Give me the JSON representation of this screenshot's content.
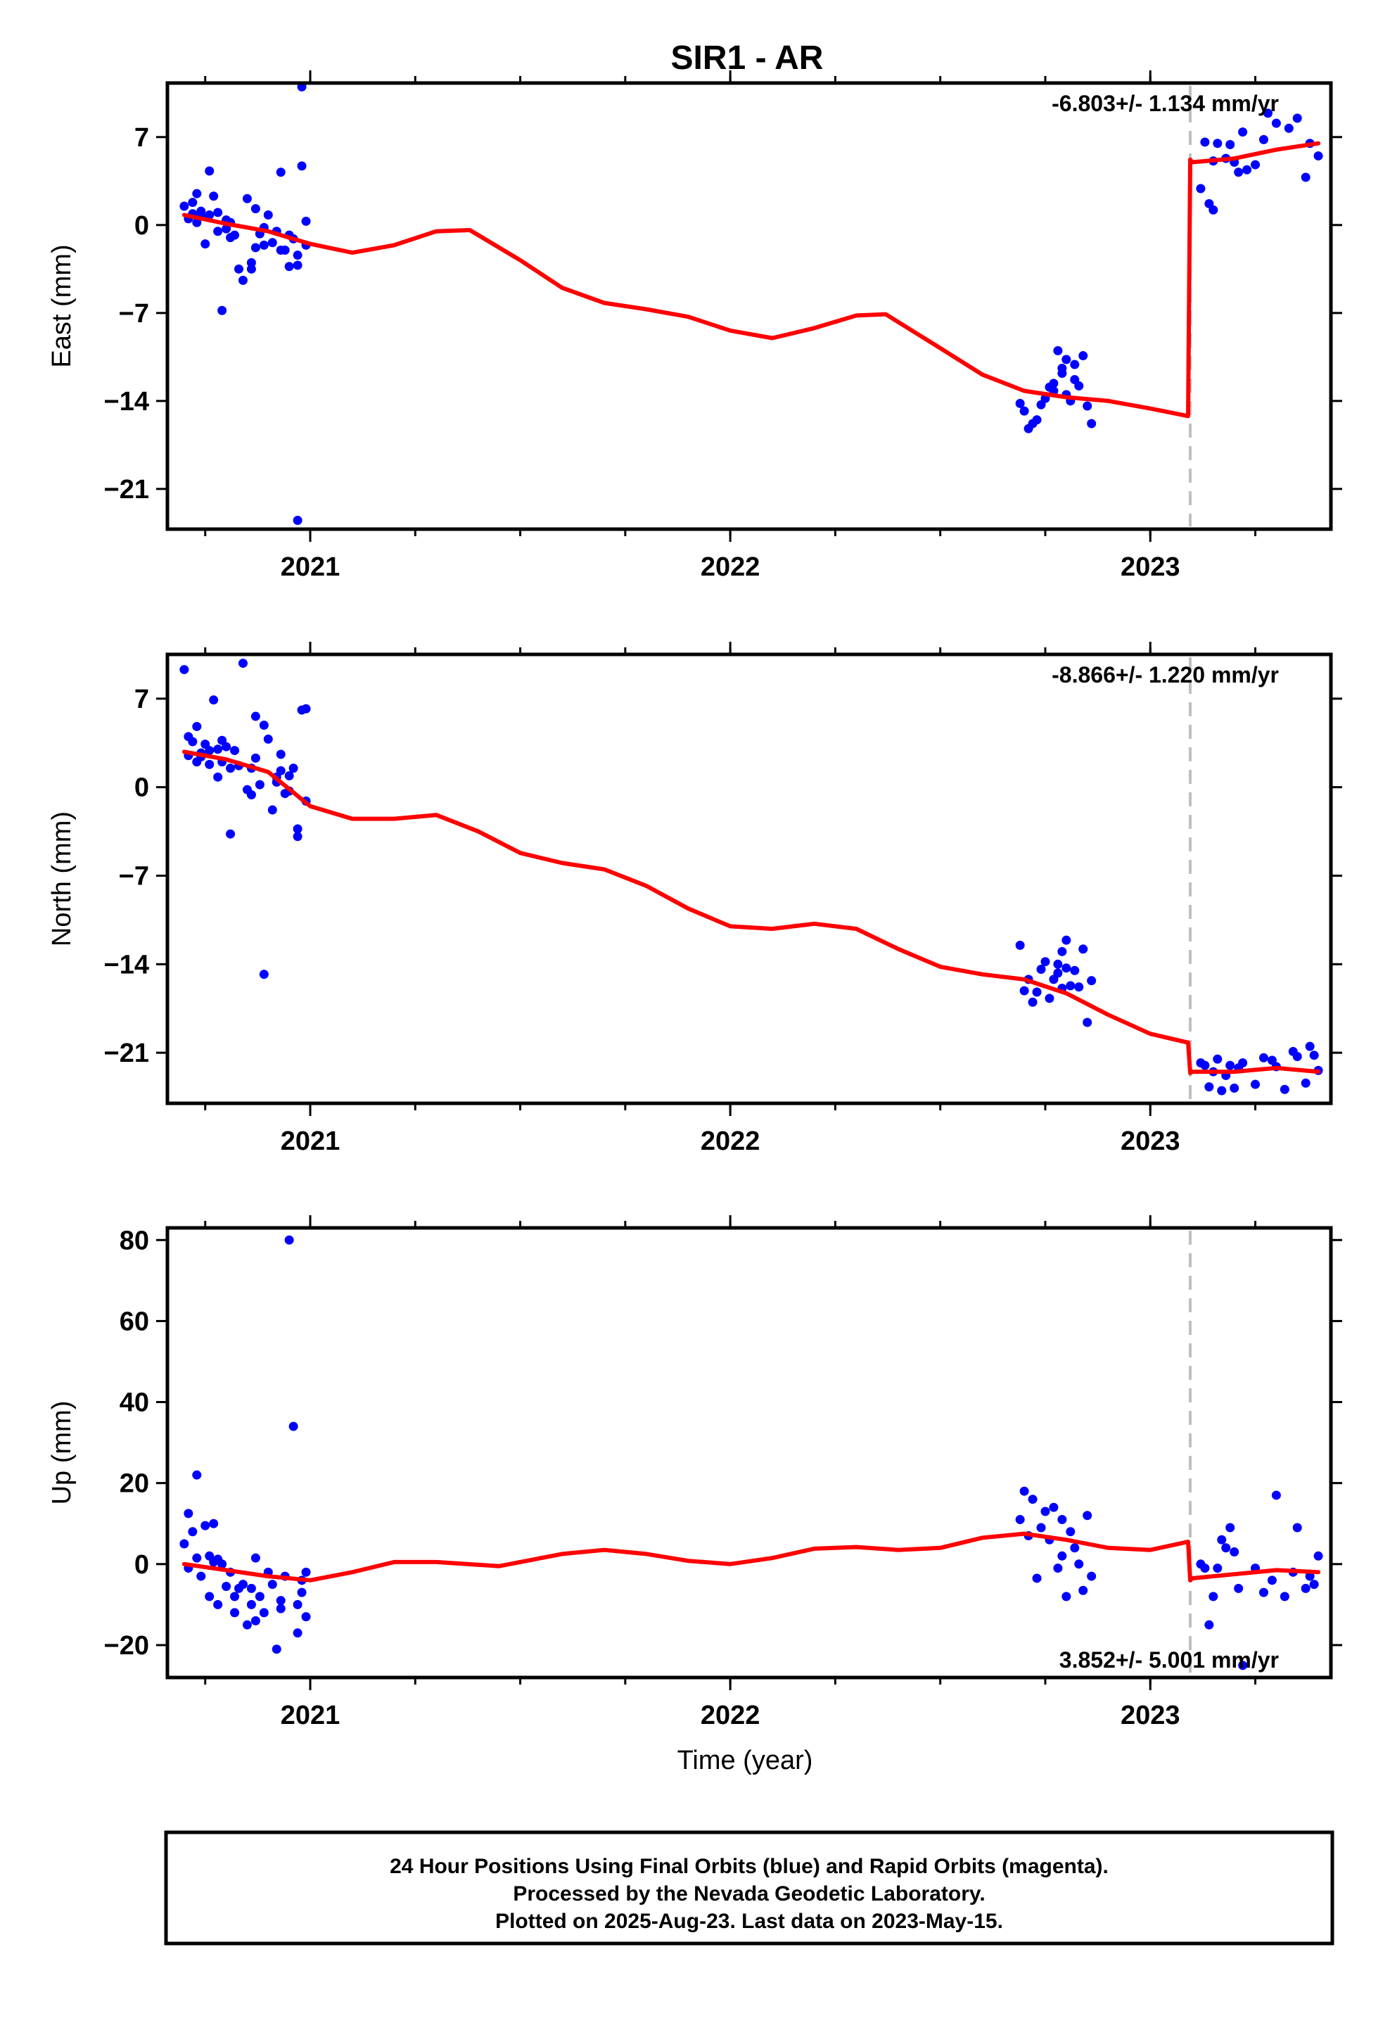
{
  "title": "SIR1 - AR",
  "colors": {
    "data": "#0000ff",
    "model": "#ff0000",
    "offset": "#c0c0c0",
    "frame": "#000000"
  },
  "footer": {
    "lines": [
      "24 Hour Positions Using Final Orbits (blue) and Rapid Orbits (magenta).",
      "Processed by the Nevada Geodetic Laboratory.",
      "Plotted on 2025-Aug-23. Last data on 2023-May-15."
    ]
  },
  "chart_data": [
    {
      "type": "scatter",
      "component": "east",
      "ylabel": "East (mm)",
      "xlabel": "",
      "rate_label": "-6.803+/- 1.134 mm/yr",
      "xlim": [
        2020.66,
        2023.43
      ],
      "ylim": [
        -24.2,
        11.3
      ],
      "yticks": [
        7,
        0,
        -7,
        -14,
        -21
      ],
      "ytick_labels": [
        "7",
        "0",
        "−7",
        "−14",
        "−21"
      ],
      "xticks": [
        2021,
        2022,
        2023
      ],
      "xtick_labels": [
        "2021",
        "2022",
        "2023"
      ],
      "offset_epoch": 2023.095,
      "series": [
        {
          "kind": "points",
          "x": [
            2020.7,
            2020.71,
            2020.72,
            2020.73,
            2020.73,
            2020.74,
            2020.75,
            2020.76,
            2020.76,
            2020.77,
            2020.78,
            2020.78,
            2020.79,
            2020.8,
            2020.81,
            2020.81,
            2020.82,
            2020.83,
            2020.84,
            2020.85,
            2020.86,
            2020.87,
            2020.88,
            2020.89,
            2020.89,
            2020.9,
            2020.91,
            2020.92,
            2020.93,
            2020.94,
            2020.95,
            2020.96,
            2020.97,
            2020.97,
            2020.98,
            2020.99,
            2020.99,
            2020.72,
            2020.8,
            2020.97,
            2020.98,
            2020.95,
            2020.93,
            2020.86,
            2020.87,
            2020.74,
            2022.69,
            2022.7,
            2022.71,
            2022.72,
            2022.73,
            2022.74,
            2022.75,
            2022.76,
            2022.77,
            2022.78,
            2022.79,
            2022.8,
            2022.81,
            2022.82,
            2022.82,
            2022.83,
            2022.84,
            2022.85,
            2022.86,
            2022.79,
            2022.8,
            2022.77,
            2023.12,
            2023.13,
            2023.14,
            2023.15,
            2023.16,
            2023.18,
            2023.19,
            2023.2,
            2023.21,
            2023.22,
            2023.23,
            2023.25,
            2023.27,
            2023.28,
            2023.3,
            2023.33,
            2023.35,
            2023.37,
            2023.38,
            2023.4,
            2023.15
          ],
          "y": [
            1.5,
            0.5,
            1.8,
            0.2,
            2.5,
            1.1,
            -1.5,
            0.8,
            4.3,
            2.3,
            -0.5,
            1.0,
            -6.8,
            -0.3,
            0.2,
            -1.0,
            -0.8,
            -3.5,
            -4.4,
            2.1,
            -3.0,
            1.3,
            -0.7,
            -0.2,
            -1.6,
            0.8,
            -1.4,
            -0.5,
            4.2,
            -2.0,
            -0.8,
            -1.1,
            -2.4,
            -3.2,
            11.0,
            0.3,
            -1.6,
            0.9,
            0.4,
            -23.5,
            4.7,
            -3.3,
            -2.0,
            -3.5,
            -1.8,
            0.7,
            -14.2,
            -14.8,
            -16.2,
            -15.8,
            -15.5,
            -14.3,
            -13.8,
            -12.9,
            -13.2,
            -10.0,
            -11.8,
            -13.5,
            -14.0,
            -12.3,
            -11.1,
            -12.8,
            -10.4,
            -14.4,
            -15.8,
            -11.4,
            -10.7,
            -12.6,
            2.9,
            6.6,
            1.7,
            1.2,
            6.5,
            5.3,
            6.4,
            5.0,
            4.2,
            7.4,
            4.4,
            4.8,
            6.8,
            8.9,
            8.1,
            7.7,
            8.5,
            3.8,
            6.5,
            5.5,
            5.1
          ]
        },
        {
          "kind": "model",
          "x": [
            2020.7,
            2020.8,
            2020.9,
            2021.0,
            2021.1,
            2021.2,
            2021.3,
            2021.38,
            2021.5,
            2021.6,
            2021.7,
            2021.8,
            2021.9,
            2022.0,
            2022.1,
            2022.2,
            2022.3,
            2022.37,
            2022.5,
            2022.6,
            2022.7,
            2022.8,
            2022.9,
            2023.0,
            2023.09,
            2023.095,
            2023.1,
            2023.2,
            2023.3,
            2023.4
          ],
          "y": [
            0.8,
            0.1,
            -0.5,
            -1.5,
            -2.2,
            -1.6,
            -0.5,
            -0.4,
            -2.8,
            -5.0,
            -6.2,
            -6.7,
            -7.3,
            -8.4,
            -9.0,
            -8.2,
            -7.2,
            -7.1,
            -9.8,
            -11.9,
            -13.2,
            -13.7,
            -14.0,
            -14.6,
            -15.2,
            5.2,
            5.0,
            5.3,
            6.0,
            6.5
          ]
        }
      ]
    },
    {
      "type": "scatter",
      "component": "north",
      "ylabel": "North (mm)",
      "xlabel": "",
      "rate_label": "-8.866+/- 1.220 mm/yr",
      "xlim": [
        2020.66,
        2023.43
      ],
      "ylim": [
        -25.0,
        10.5
      ],
      "yticks": [
        7,
        0,
        -7,
        -14,
        -21
      ],
      "ytick_labels": [
        "7",
        "0",
        "−7",
        "−14",
        "−21"
      ],
      "xticks": [
        2021,
        2022,
        2023
      ],
      "xtick_labels": [
        "2021",
        "2022",
        "2023"
      ],
      "offset_epoch": 2023.095,
      "series": [
        {
          "kind": "points",
          "x": [
            2020.7,
            2020.71,
            2020.71,
            2020.72,
            2020.73,
            2020.73,
            2020.74,
            2020.75,
            2020.76,
            2020.76,
            2020.77,
            2020.78,
            2020.78,
            2020.79,
            2020.8,
            2020.81,
            2020.81,
            2020.82,
            2020.83,
            2020.84,
            2020.85,
            2020.86,
            2020.87,
            2020.87,
            2020.88,
            2020.89,
            2020.9,
            2020.91,
            2020.92,
            2020.93,
            2020.93,
            2020.94,
            2020.95,
            2020.96,
            2020.97,
            2020.97,
            2020.98,
            2020.99,
            2020.99,
            2020.74,
            2020.86,
            2020.79,
            2020.95,
            2020.92,
            2020.89,
            2022.69,
            2022.7,
            2022.71,
            2022.72,
            2022.73,
            2022.74,
            2022.75,
            2022.76,
            2022.77,
            2022.78,
            2022.79,
            2022.8,
            2022.8,
            2022.81,
            2022.82,
            2022.83,
            2022.84,
            2022.85,
            2022.86,
            2022.79,
            2022.78,
            2023.12,
            2023.13,
            2023.14,
            2023.15,
            2023.16,
            2023.17,
            2023.18,
            2023.19,
            2023.2,
            2023.21,
            2023.22,
            2023.25,
            2023.27,
            2023.29,
            2023.3,
            2023.32,
            2023.34,
            2023.35,
            2023.37,
            2023.38,
            2023.4,
            2023.39
          ],
          "y": [
            9.3,
            4.0,
            2.5,
            3.6,
            2.0,
            4.8,
            2.7,
            3.4,
            1.8,
            2.9,
            6.9,
            3.0,
            0.8,
            3.7,
            3.2,
            -3.7,
            1.5,
            2.9,
            1.7,
            9.8,
            -0.2,
            1.5,
            5.6,
            2.3,
            0.2,
            4.9,
            3.8,
            -1.8,
            0.8,
            1.3,
            2.6,
            -0.5,
            -0.3,
            1.5,
            -3.9,
            -3.3,
            6.1,
            6.2,
            -1.1,
            2.4,
            -0.6,
            2.0,
            0.9,
            0.4,
            -14.8,
            -12.5,
            -16.1,
            -15.2,
            -17.0,
            -16.2,
            -14.4,
            -13.8,
            -16.7,
            -15.2,
            -14.7,
            -13.0,
            -12.1,
            -14.3,
            -15.7,
            -14.5,
            -15.8,
            -12.8,
            -18.6,
            -15.3,
            -15.9,
            -14.0,
            -21.8,
            -22.0,
            -23.7,
            -22.5,
            -21.5,
            -24.0,
            -22.8,
            -22.0,
            -23.8,
            -22.2,
            -21.8,
            -23.5,
            -21.4,
            -21.6,
            -22.1,
            -23.9,
            -20.9,
            -21.3,
            -23.4,
            -20.5,
            -22.4,
            -21.2
          ],
          "fill": "#0000ff"
        },
        {
          "kind": "model",
          "x": [
            2020.7,
            2020.8,
            2020.9,
            2021.0,
            2021.1,
            2021.2,
            2021.3,
            2021.4,
            2021.5,
            2021.6,
            2021.7,
            2021.8,
            2021.9,
            2022.0,
            2022.1,
            2022.2,
            2022.3,
            2022.4,
            2022.5,
            2022.6,
            2022.7,
            2022.8,
            2022.9,
            2023.0,
            2023.09,
            2023.095,
            2023.1,
            2023.2,
            2023.3,
            2023.4
          ],
          "y": [
            2.8,
            2.2,
            1.2,
            -1.5,
            -2.5,
            -2.5,
            -2.2,
            -3.5,
            -5.2,
            -6.0,
            -6.5,
            -7.8,
            -9.6,
            -11.0,
            -11.2,
            -10.8,
            -11.2,
            -12.8,
            -14.2,
            -14.8,
            -15.2,
            -16.3,
            -18.0,
            -19.5,
            -20.2,
            -22.6,
            -22.5,
            -22.5,
            -22.2,
            -22.5
          ]
        }
      ]
    },
    {
      "type": "scatter",
      "component": "up",
      "ylabel": "Up (mm)",
      "xlabel": "Time (year)",
      "rate_label": "3.852+/- 5.001 mm/yr",
      "xlim": [
        2020.66,
        2023.43
      ],
      "ylim": [
        -28.0,
        83.0
      ],
      "yticks": [
        80,
        60,
        40,
        20,
        0,
        -20
      ],
      "ytick_labels": [
        "80",
        "60",
        "40",
        "20",
        "0",
        "−20"
      ],
      "xticks": [
        2021,
        2022,
        2023
      ],
      "xtick_labels": [
        "2021",
        "2022",
        "2023"
      ],
      "offset_epoch": 2023.095,
      "series": [
        {
          "kind": "points",
          "x": [
            2020.7,
            2020.71,
            2020.71,
            2020.72,
            2020.73,
            2020.73,
            2020.74,
            2020.75,
            2020.76,
            2020.76,
            2020.77,
            2020.78,
            2020.78,
            2020.79,
            2020.8,
            2020.81,
            2020.82,
            2020.82,
            2020.83,
            2020.84,
            2020.85,
            2020.86,
            2020.87,
            2020.87,
            2020.88,
            2020.89,
            2020.9,
            2020.91,
            2020.92,
            2020.93,
            2020.94,
            2020.95,
            2020.96,
            2020.97,
            2020.97,
            2020.98,
            2020.98,
            2020.99,
            2020.99,
            2020.77,
            2020.86,
            2020.93,
            2022.69,
            2022.7,
            2022.71,
            2022.72,
            2022.73,
            2022.74,
            2022.75,
            2022.76,
            2022.77,
            2022.78,
            2022.79,
            2022.79,
            2022.8,
            2022.81,
            2022.82,
            2022.83,
            2022.84,
            2022.85,
            2022.86,
            2023.12,
            2023.13,
            2023.14,
            2023.15,
            2023.16,
            2023.17,
            2023.18,
            2023.19,
            2023.2,
            2023.21,
            2023.22,
            2023.25,
            2023.27,
            2023.29,
            2023.3,
            2023.32,
            2023.34,
            2023.35,
            2023.37,
            2023.38,
            2023.4,
            2023.39
          ],
          "y": [
            5.0,
            12.5,
            -1.0,
            8.0,
            1.5,
            22.0,
            -3.0,
            9.5,
            2.0,
            -8.0,
            0.5,
            1.2,
            -10.0,
            0.0,
            -5.5,
            -2.0,
            -12.0,
            -8.0,
            -6.0,
            -5.0,
            -15.0,
            -10.0,
            1.5,
            -14.0,
            -8.0,
            -12.0,
            -2.0,
            -5.0,
            -21.0,
            -11.0,
            -3.0,
            80.0,
            34.0,
            -17.0,
            -10.0,
            -4.0,
            -7.0,
            -13.0,
            -2.0,
            10.0,
            -6.0,
            -9.0,
            11.0,
            18.0,
            7.0,
            16.0,
            -3.5,
            9.0,
            13.0,
            6.0,
            14.0,
            -1.0,
            11.0,
            2.0,
            -8.0,
            8.0,
            4.0,
            0.0,
            -6.5,
            12.0,
            -3.0,
            0.0,
            -1.0,
            -15.0,
            -8.0,
            -1.0,
            6.0,
            4.0,
            9.0,
            3.0,
            -6.0,
            -25.0,
            -1.0,
            -7.0,
            -4.0,
            17.0,
            -8.0,
            -2.0,
            9.0,
            -6.0,
            -3.0,
            2.0,
            -5.0
          ],
          "fill": "#0000ff"
        },
        {
          "kind": "model",
          "x": [
            2020.7,
            2020.8,
            2020.9,
            2021.0,
            2021.1,
            2021.2,
            2021.3,
            2021.45,
            2021.6,
            2021.7,
            2021.8,
            2021.9,
            2022.0,
            2022.1,
            2022.2,
            2022.3,
            2022.4,
            2022.5,
            2022.6,
            2022.7,
            2022.8,
            2022.9,
            2023.0,
            2023.09,
            2023.095,
            2023.1,
            2023.2,
            2023.3,
            2023.4
          ],
          "y": [
            0.0,
            -1.5,
            -3.0,
            -4.0,
            -2.0,
            0.5,
            0.5,
            -0.5,
            2.5,
            3.5,
            2.5,
            0.8,
            0.0,
            1.5,
            3.8,
            4.2,
            3.5,
            4.0,
            6.5,
            7.5,
            6.0,
            4.0,
            3.5,
            5.5,
            -4.0,
            -3.5,
            -2.5,
            -1.5,
            -2.0
          ]
        }
      ]
    }
  ]
}
